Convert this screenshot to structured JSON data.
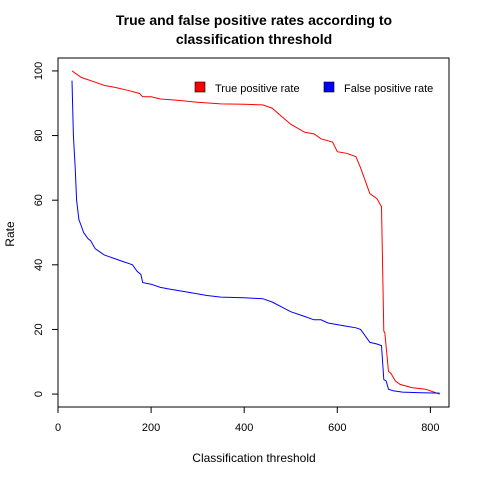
{
  "chart_data": {
    "type": "line",
    "title_lines": [
      "True and false positive rates according to",
      "classification threshold"
    ],
    "xlabel": "Classification threshold",
    "ylabel": "Rate",
    "xlim": [
      0,
      840
    ],
    "ylim": [
      -4,
      104
    ],
    "xticks": [
      0,
      200,
      400,
      600,
      800
    ],
    "yticks": [
      0,
      20,
      40,
      60,
      80,
      100
    ],
    "grid": false,
    "legend_position": "top-right",
    "series": [
      {
        "name": "True positive rate",
        "color": "#ff0000",
        "x": [
          30,
          40,
          50,
          60,
          80,
          100,
          120,
          150,
          175,
          182,
          200,
          220,
          250,
          300,
          350,
          400,
          440,
          460,
          480,
          500,
          530,
          550,
          565,
          590,
          600,
          620,
          640,
          650,
          670,
          685,
          695,
          700,
          702,
          710,
          715,
          725,
          735,
          760,
          790,
          810,
          820
        ],
        "y": [
          100,
          99,
          98,
          97.5,
          96.5,
          95.5,
          95,
          94,
          93,
          92,
          92,
          91.3,
          91,
          90.3,
          89.8,
          89.7,
          89.5,
          88.5,
          86,
          83.5,
          81,
          80.5,
          79,
          78,
          75,
          74.5,
          73.5,
          70,
          62,
          60.5,
          58,
          19.5,
          19,
          7,
          6.5,
          4,
          3,
          2,
          1.5,
          0.5,
          0
        ]
      },
      {
        "name": "False positive rate",
        "color": "#0000ff",
        "x": [
          30,
          33,
          37,
          40,
          45,
          50,
          55,
          60,
          65,
          70,
          80,
          90,
          100,
          110,
          120,
          140,
          160,
          170,
          178,
          182,
          200,
          220,
          240,
          280,
          320,
          350,
          400,
          440,
          460,
          480,
          500,
          530,
          550,
          565,
          580,
          600,
          620,
          640,
          650,
          670,
          685,
          695,
          700,
          705,
          710,
          720,
          740,
          780,
          820
        ],
        "y": [
          97,
          80,
          70,
          60,
          54,
          52,
          50,
          49,
          48,
          47.5,
          45,
          44,
          43,
          42.5,
          42,
          41,
          40,
          38,
          37,
          34.5,
          34,
          33,
          32.5,
          31.5,
          30.5,
          30,
          29.8,
          29.5,
          28.5,
          27,
          25.5,
          24,
          23,
          23,
          22,
          21.5,
          21,
          20.5,
          20,
          16,
          15.5,
          15,
          4.5,
          4,
          1.5,
          1,
          0.6,
          0.4,
          0.3
        ]
      }
    ]
  }
}
